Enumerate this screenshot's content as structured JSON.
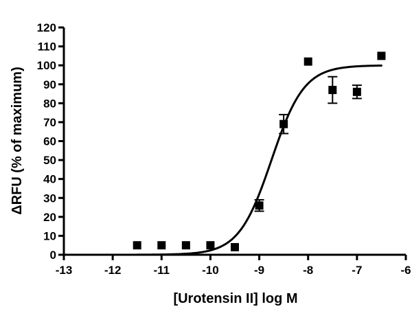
{
  "chart_data": {
    "type": "scatter",
    "title": "",
    "xlabel": "[Urotensin II] log M",
    "ylabel": "ΔRFU (% of maximum)",
    "xlim": [
      -13,
      -6
    ],
    "ylim": [
      0,
      120
    ],
    "x_ticks": [
      "-13",
      "-12",
      "-11",
      "-10",
      "-9",
      "-8",
      "-7",
      "-6"
    ],
    "y_ticks": [
      "0",
      "10",
      "20",
      "30",
      "40",
      "50",
      "60",
      "70",
      "80",
      "90",
      "100",
      "110",
      "120"
    ],
    "grid": false,
    "legend": "none",
    "colors": {
      "marker": "#000000",
      "curve": "#000000",
      "axes": "#000000"
    },
    "points": [
      {
        "x": -11.5,
        "y": 5,
        "err": 0
      },
      {
        "x": -11.0,
        "y": 5,
        "err": 0
      },
      {
        "x": -10.5,
        "y": 5,
        "err": 0
      },
      {
        "x": -10.0,
        "y": 5,
        "err": 0
      },
      {
        "x": -9.5,
        "y": 4,
        "err": 0
      },
      {
        "x": -9.0,
        "y": 26,
        "err": 3
      },
      {
        "x": -8.5,
        "y": 69,
        "err": 5
      },
      {
        "x": -8.0,
        "y": 102,
        "err": 0
      },
      {
        "x": -7.5,
        "y": 87,
        "err": 7
      },
      {
        "x": -7.0,
        "y": 86,
        "err": 3.5
      },
      {
        "x": -6.5,
        "y": 105,
        "err": 0
      }
    ],
    "fit_curve": {
      "model": "sigmoidal dose-response",
      "bottom": 0,
      "top": 100,
      "logEC50": -8.75,
      "hillslope": 1.3,
      "x_range": [
        -11.5,
        -6.5
      ]
    }
  }
}
